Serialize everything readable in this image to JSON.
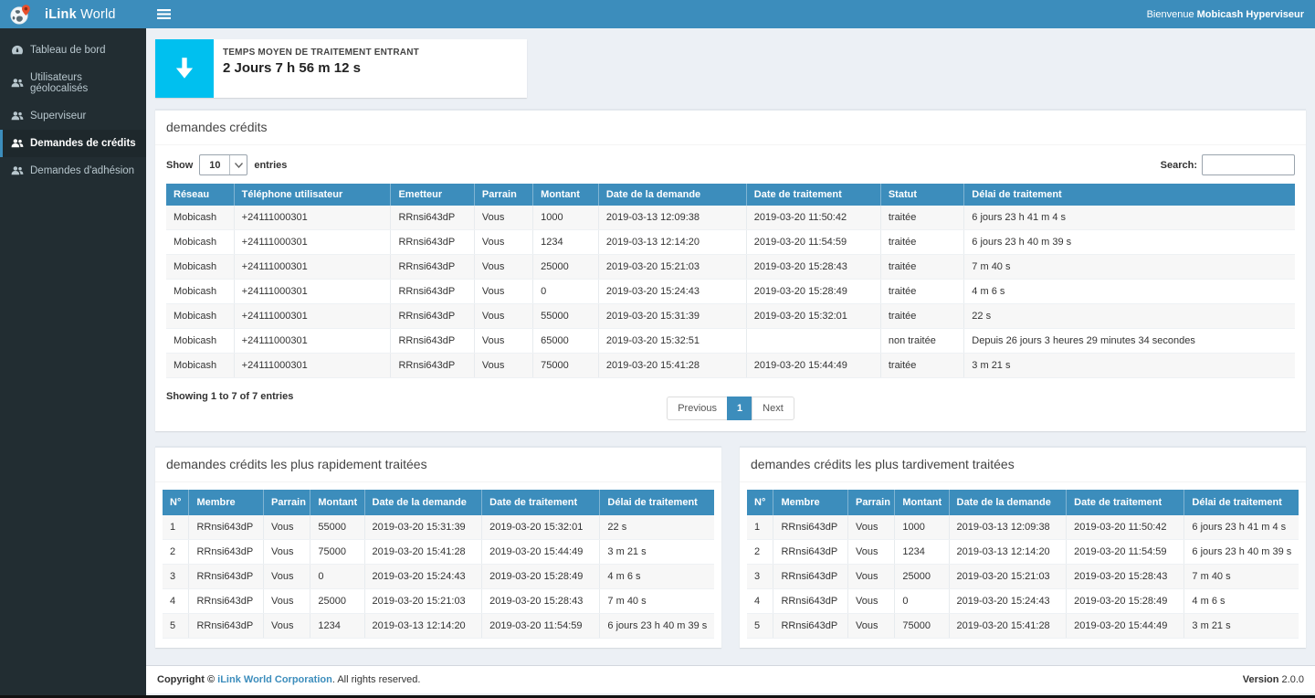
{
  "colors": {
    "primary_blue": "#3c8dbc",
    "sidebar_dark": "#222d32",
    "active_item_bg": "#1e282c",
    "info_cyan": "#00c0ef",
    "content_bg": "#ecf0f5",
    "pin_orange": "#e8502d"
  },
  "sidebar": {
    "logo_bold": "iLink",
    "logo_normal": " World",
    "items": [
      {
        "label": "Tableau de bord",
        "icon": "dashboard-icon",
        "active": false
      },
      {
        "label": "Utilisateurs géolocalisés",
        "icon": "users-icon",
        "active": false
      },
      {
        "label": "Superviseur",
        "icon": "users-icon",
        "active": false
      },
      {
        "label": "Demandes de crédits",
        "icon": "users-icon",
        "active": true
      },
      {
        "label": "Demandes d'adhésion",
        "icon": "users-icon",
        "active": false
      }
    ]
  },
  "navbar": {
    "menu_icon": "hamburger-icon",
    "welcome_prefix": "Bienvenue ",
    "welcome_user": "Mobicash Hyperviseur"
  },
  "info_box": {
    "icon": "down-arrow-icon",
    "label": "TEMPS MOYEN DE TRAITEMENT ENTRANT",
    "value": "2 Jours 7 h 56 m 12 s"
  },
  "credits_panel": {
    "title": "demandes crédits",
    "show_label": "Show",
    "page_size": "10",
    "entries_label": "entries",
    "search_label": "Search:",
    "search_value": "",
    "columns": [
      "Réseau",
      "Téléphone utilisateur",
      "Emetteur",
      "Parrain",
      "Montant",
      "Date de la demande",
      "Date de traitement",
      "Statut",
      "Délai de traitement"
    ],
    "rows": [
      [
        "Mobicash",
        "+24111000301",
        "RRnsi643dP",
        "Vous",
        "1000",
        "2019-03-13 12:09:38",
        "2019-03-20 11:50:42",
        "traitée",
        "6 jours 23 h 41 m 4 s"
      ],
      [
        "Mobicash",
        "+24111000301",
        "RRnsi643dP",
        "Vous",
        "1234",
        "2019-03-13 12:14:20",
        "2019-03-20 11:54:59",
        "traitée",
        "6 jours 23 h 40 m 39 s"
      ],
      [
        "Mobicash",
        "+24111000301",
        "RRnsi643dP",
        "Vous",
        "25000",
        "2019-03-20 15:21:03",
        "2019-03-20 15:28:43",
        "traitée",
        "7 m 40 s"
      ],
      [
        "Mobicash",
        "+24111000301",
        "RRnsi643dP",
        "Vous",
        "0",
        "2019-03-20 15:24:43",
        "2019-03-20 15:28:49",
        "traitée",
        "4 m 6 s"
      ],
      [
        "Mobicash",
        "+24111000301",
        "RRnsi643dP",
        "Vous",
        "55000",
        "2019-03-20 15:31:39",
        "2019-03-20 15:32:01",
        "traitée",
        "22 s"
      ],
      [
        "Mobicash",
        "+24111000301",
        "RRnsi643dP",
        "Vous",
        "65000",
        "2019-03-20 15:32:51",
        "",
        "non traitée",
        "Depuis 26 jours 3 heures 29 minutes 34 secondes"
      ],
      [
        "Mobicash",
        "+24111000301",
        "RRnsi643dP",
        "Vous",
        "75000",
        "2019-03-20 15:41:28",
        "2019-03-20 15:44:49",
        "traitée",
        "3 m 21 s"
      ]
    ],
    "summary": "Showing 1 to 7 of 7 entries",
    "pagination": {
      "previous": "Previous",
      "current": "1",
      "next": "Next"
    }
  },
  "fastest_panel": {
    "title": "demandes crédits les plus rapidement traitées",
    "columns": [
      "N°",
      "Membre",
      "Parrain",
      "Montant",
      "Date de la demande",
      "Date de traitement",
      "Délai de traitement"
    ],
    "rows": [
      [
        "1",
        "RRnsi643dP",
        "Vous",
        "55000",
        "2019-03-20 15:31:39",
        "2019-03-20 15:32:01",
        "22 s"
      ],
      [
        "2",
        "RRnsi643dP",
        "Vous",
        "75000",
        "2019-03-20 15:41:28",
        "2019-03-20 15:44:49",
        "3 m 21 s"
      ],
      [
        "3",
        "RRnsi643dP",
        "Vous",
        "0",
        "2019-03-20 15:24:43",
        "2019-03-20 15:28:49",
        "4 m 6 s"
      ],
      [
        "4",
        "RRnsi643dP",
        "Vous",
        "25000",
        "2019-03-20 15:21:03",
        "2019-03-20 15:28:43",
        "7 m 40 s"
      ],
      [
        "5",
        "RRnsi643dP",
        "Vous",
        "1234",
        "2019-03-13 12:14:20",
        "2019-03-20 11:54:59",
        "6 jours 23 h 40 m 39 s"
      ]
    ]
  },
  "slowest_panel": {
    "title": "demandes crédits les plus tardivement traitées",
    "columns": [
      "N°",
      "Membre",
      "Parrain",
      "Montant",
      "Date de la demande",
      "Date de traitement",
      "Délai de traitement"
    ],
    "rows": [
      [
        "1",
        "RRnsi643dP",
        "Vous",
        "1000",
        "2019-03-13 12:09:38",
        "2019-03-20 11:50:42",
        "6 jours 23 h 41 m 4 s"
      ],
      [
        "2",
        "RRnsi643dP",
        "Vous",
        "1234",
        "2019-03-13 12:14:20",
        "2019-03-20 11:54:59",
        "6 jours 23 h 40 m 39 s"
      ],
      [
        "3",
        "RRnsi643dP",
        "Vous",
        "25000",
        "2019-03-20 15:21:03",
        "2019-03-20 15:28:43",
        "7 m 40 s"
      ],
      [
        "4",
        "RRnsi643dP",
        "Vous",
        "0",
        "2019-03-20 15:24:43",
        "2019-03-20 15:28:49",
        "4 m 6 s"
      ],
      [
        "5",
        "RRnsi643dP",
        "Vous",
        "75000",
        "2019-03-20 15:41:28",
        "2019-03-20 15:44:49",
        "3 m 21 s"
      ]
    ]
  },
  "footer": {
    "copyright_bold": "Copyright © ",
    "company_link": "iLink World Corporation",
    "rights_text": ". All rights reserved.",
    "version_label": "Version",
    "version_value": " 2.0.0"
  }
}
